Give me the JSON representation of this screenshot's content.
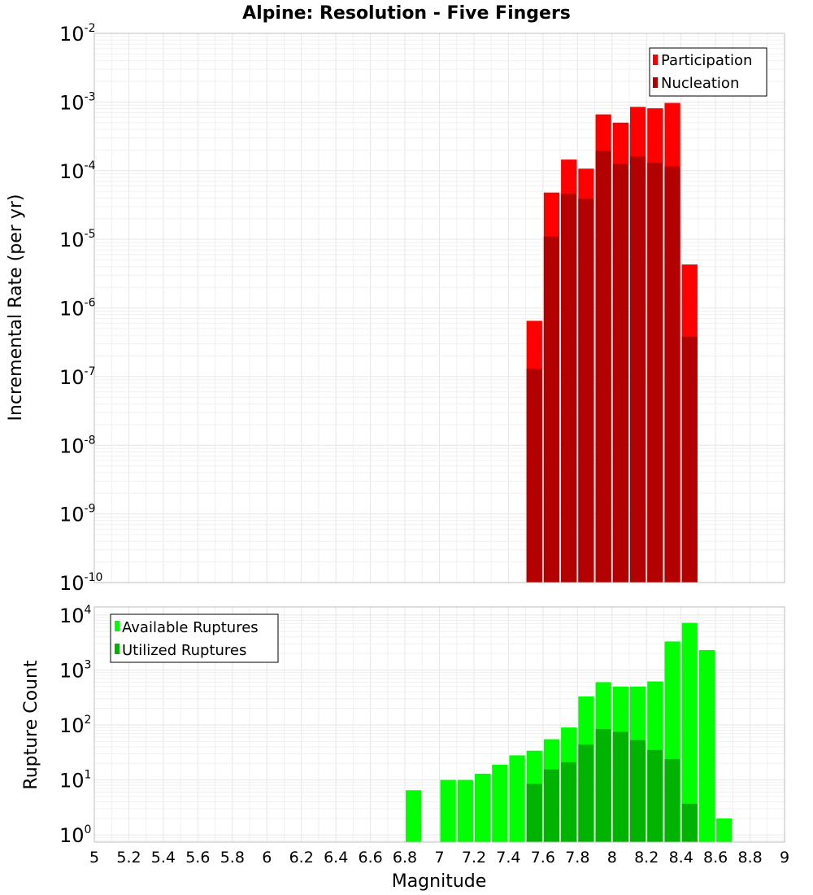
{
  "title": "Alpine: Resolution - Five Fingers",
  "xlabel": "Magnitude",
  "colors": {
    "participation": "#ff0000",
    "nucleation": "#b30000",
    "available": "#00ff00",
    "utilized": "#00b300"
  },
  "x_ticks": [
    "5",
    "5.2",
    "5.4",
    "5.6",
    "5.8",
    "6",
    "6.2",
    "6.4",
    "6.6",
    "6.8",
    "7",
    "7.2",
    "7.4",
    "7.6",
    "7.8",
    "8",
    "8.2",
    "8.4",
    "8.6",
    "8.8",
    "9"
  ],
  "chart_data": [
    {
      "type": "bar",
      "ylabel": "Incremental Rate (per yr)",
      "yscale": "log",
      "ylim": [
        1e-10,
        0.01
      ],
      "xlim": [
        5,
        9
      ],
      "y_tick_exponents": [
        "-10",
        "-9",
        "-8",
        "-7",
        "-6",
        "-5",
        "-4",
        "-3",
        "-2"
      ],
      "legend": {
        "placement": "top-right",
        "entries": [
          "Participation",
          "Nucleation"
        ]
      },
      "x": [
        7.55,
        7.65,
        7.75,
        7.85,
        7.95,
        8.05,
        8.15,
        8.25,
        8.35,
        8.45
      ],
      "series": [
        {
          "name": "Participation",
          "values": [
            6.5e-07,
            4.8e-05,
            0.000145,
            0.000107,
            0.00066,
            0.0005,
            0.00085,
            0.00081,
            0.00097,
            4.3e-06
          ]
        },
        {
          "name": "Nucleation",
          "values": [
            1.3e-07,
            1.1e-05,
            4.6e-05,
            3.9e-05,
            0.000195,
            0.000125,
            0.00016,
            0.00013,
            0.000115,
            3.8e-07
          ]
        }
      ]
    },
    {
      "type": "bar",
      "ylabel": "Rupture Count",
      "yscale": "log",
      "ylim": [
        0.74,
        14000
      ],
      "xlim": [
        5,
        9
      ],
      "y_tick_exponents": [
        "0",
        "1",
        "2",
        "3",
        "4"
      ],
      "legend": {
        "placement": "top-left",
        "entries": [
          "Available Ruptures",
          "Utilized Ruptures"
        ]
      },
      "x": [
        6.85,
        7.05,
        7.15,
        7.25,
        7.35,
        7.45,
        7.55,
        7.65,
        7.75,
        7.85,
        7.95,
        8.05,
        8.15,
        8.25,
        8.35,
        8.45,
        8.55,
        8.65
      ],
      "series": [
        {
          "name": "Available Ruptures",
          "values": [
            6.5,
            10,
            10,
            13,
            19,
            28,
            34,
            55,
            90,
            330,
            600,
            500,
            500,
            620,
            3300,
            7200,
            2300,
            2
          ]
        },
        {
          "name": "Utilized Ruptures",
          "values": [
            0,
            0,
            0,
            0,
            0,
            0,
            8.5,
            15.5,
            21,
            44,
            84,
            75,
            53,
            35,
            24,
            3.7,
            0,
            0
          ]
        }
      ]
    }
  ]
}
